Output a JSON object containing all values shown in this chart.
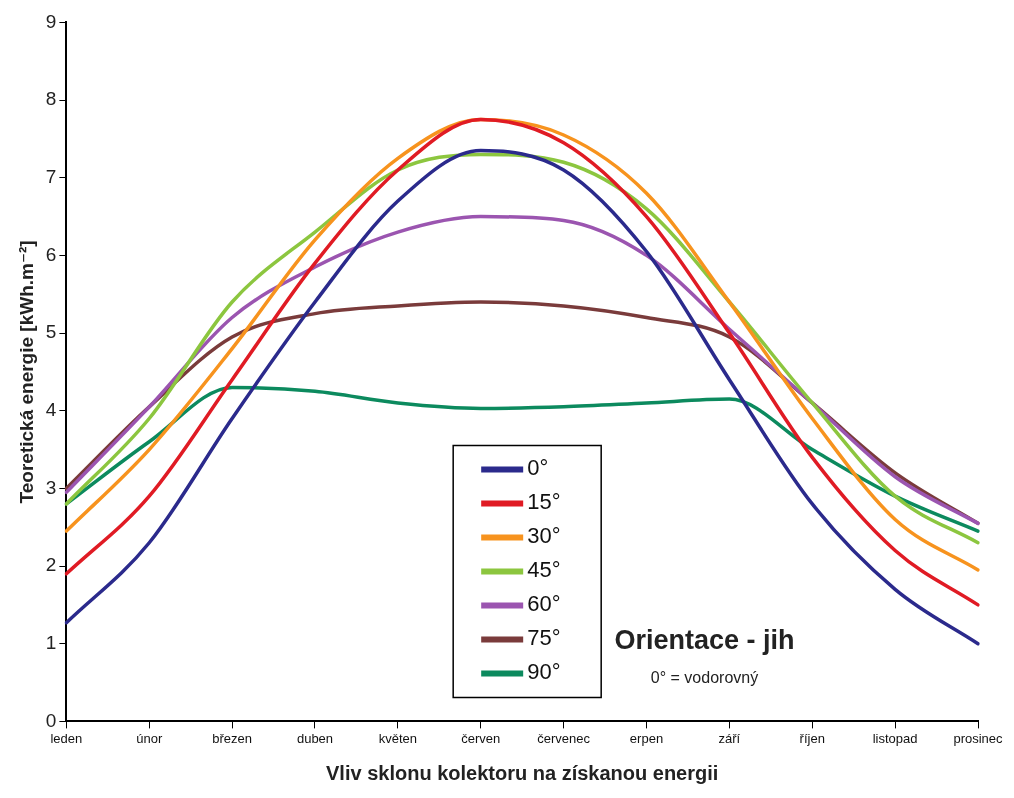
{
  "chart_data": {
    "type": "line",
    "xlabel": "Vliv sklonu kolektoru na získanou energii",
    "ylabel": "Teoretická energie [kWh.m⁻²]",
    "categories": [
      "leden",
      "únor",
      "březen",
      "duben",
      "květen",
      "červen",
      "červenec",
      "erpen",
      "září",
      "říjen",
      "listopad",
      "prosinec"
    ],
    "series": [
      {
        "name": "0°",
        "color": "#2b2a8c",
        "values": [
          1.27,
          2.3,
          3.9,
          5.4,
          6.7,
          7.35,
          7.1,
          6.05,
          4.4,
          2.8,
          1.7,
          1.0
        ]
      },
      {
        "name": "15°",
        "color": "#e01b24",
        "values": [
          1.9,
          2.9,
          4.4,
          5.9,
          7.1,
          7.75,
          7.45,
          6.5,
          5.0,
          3.4,
          2.2,
          1.5
        ]
      },
      {
        "name": "30°",
        "color": "#f7931e",
        "values": [
          2.45,
          3.5,
          4.8,
          6.2,
          7.25,
          7.75,
          7.55,
          6.8,
          5.4,
          3.9,
          2.6,
          1.95
        ]
      },
      {
        "name": "45°",
        "color": "#8cc63f",
        "values": [
          2.8,
          3.9,
          5.4,
          6.3,
          7.1,
          7.3,
          7.2,
          6.6,
          5.4,
          4.1,
          2.9,
          2.3
        ]
      },
      {
        "name": "60°",
        "color": "#9b55b0",
        "values": [
          2.95,
          4.05,
          5.2,
          5.85,
          6.3,
          6.5,
          6.45,
          6.0,
          5.05,
          4.1,
          3.15,
          2.55
        ]
      },
      {
        "name": "75°",
        "color": "#7a3b3b",
        "values": [
          3.0,
          4.05,
          4.95,
          5.25,
          5.35,
          5.4,
          5.35,
          5.2,
          4.95,
          4.1,
          3.2,
          2.55
        ]
      },
      {
        "name": "90°",
        "color": "#0c8a5e",
        "values": [
          2.8,
          3.6,
          4.3,
          4.25,
          4.1,
          4.03,
          4.05,
          4.1,
          4.15,
          3.5,
          2.9,
          2.45
        ]
      }
    ],
    "ylim": [
      0,
      9
    ],
    "yticks": [
      0,
      1,
      2,
      3,
      4,
      5,
      6,
      7,
      8,
      9
    ],
    "grid": false,
    "legend": "bottom",
    "marker": "none",
    "line_style": "solid",
    "annotations": [
      "Orientace - jih",
      "0° = vodorovný"
    ]
  }
}
